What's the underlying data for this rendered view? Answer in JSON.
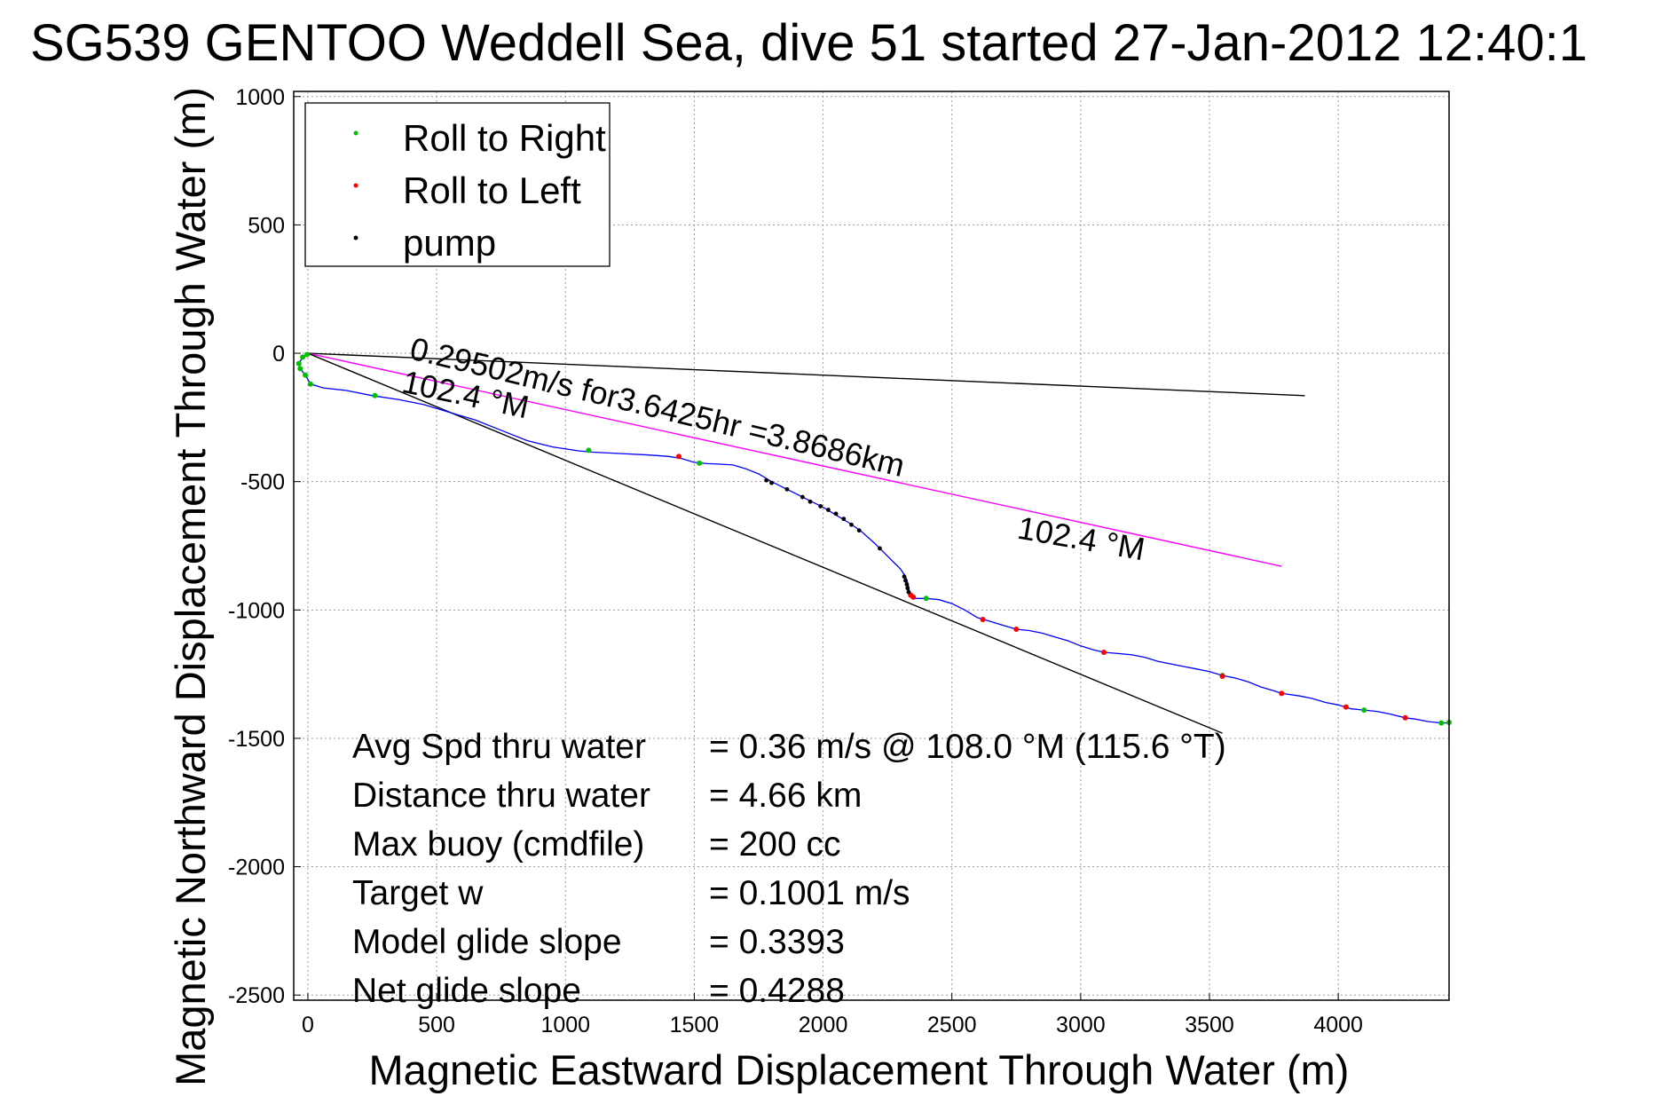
{
  "chart_data": {
    "type": "line",
    "title": "SG539 GENTOO Weddell Sea, dive 51 started 27-Jan-2012 12:40:1",
    "xlabel": "Magnetic Eastward Displacement Through Water (m)",
    "ylabel": "Magnetic Northward Displacement Through Water (m)",
    "xlim": [
      -55,
      4430
    ],
    "ylim": [
      -2520,
      1020
    ],
    "xticks": [
      0,
      500,
      1000,
      1500,
      2000,
      2500,
      3000,
      3500,
      4000
    ],
    "yticks": [
      1000,
      500,
      0,
      -500,
      -1000,
      -1500,
      -2000,
      -2500
    ],
    "grid": true,
    "legend_position": "top-left",
    "legend": [
      {
        "label": "Roll to Right",
        "color": "#00c000"
      },
      {
        "label": "Roll to Left",
        "color": "#ff0000"
      },
      {
        "label": "pump",
        "color": "#000000"
      }
    ],
    "track": {
      "color": "#0000ff",
      "points": [
        [
          -3,
          -5
        ],
        [
          -20,
          -15
        ],
        [
          -35,
          -40
        ],
        [
          -30,
          -60
        ],
        [
          -10,
          -85
        ],
        [
          10,
          -120
        ],
        [
          60,
          -135
        ],
        [
          150,
          -145
        ],
        [
          250,
          -165
        ],
        [
          350,
          -180
        ],
        [
          450,
          -200
        ],
        [
          550,
          -230
        ],
        [
          650,
          -260
        ],
        [
          750,
          -300
        ],
        [
          850,
          -340
        ],
        [
          950,
          -365
        ],
        [
          1050,
          -380
        ],
        [
          1100,
          -385
        ],
        [
          1200,
          -390
        ],
        [
          1300,
          -395
        ],
        [
          1350,
          -398
        ],
        [
          1400,
          -402
        ],
        [
          1450,
          -410
        ],
        [
          1500,
          -425
        ],
        [
          1550,
          -430
        ],
        [
          1600,
          -432
        ],
        [
          1650,
          -435
        ],
        [
          1700,
          -450
        ],
        [
          1750,
          -470
        ],
        [
          1800,
          -500
        ],
        [
          1850,
          -525
        ],
        [
          1900,
          -550
        ],
        [
          1950,
          -575
        ],
        [
          2000,
          -600
        ],
        [
          2050,
          -630
        ],
        [
          2100,
          -660
        ],
        [
          2150,
          -695
        ],
        [
          2200,
          -740
        ],
        [
          2250,
          -790
        ],
        [
          2300,
          -840
        ],
        [
          2320,
          -870
        ],
        [
          2330,
          -900
        ],
        [
          2335,
          -930
        ],
        [
          2345,
          -945
        ],
        [
          2360,
          -955
        ],
        [
          2400,
          -955
        ],
        [
          2450,
          -960
        ],
        [
          2500,
          -975
        ],
        [
          2550,
          -1000
        ],
        [
          2600,
          -1030
        ],
        [
          2650,
          -1045
        ],
        [
          2700,
          -1060
        ],
        [
          2750,
          -1075
        ],
        [
          2800,
          -1080
        ],
        [
          2850,
          -1090
        ],
        [
          2900,
          -1105
        ],
        [
          2950,
          -1120
        ],
        [
          3000,
          -1140
        ],
        [
          3050,
          -1155
        ],
        [
          3090,
          -1165
        ],
        [
          3150,
          -1170
        ],
        [
          3200,
          -1175
        ],
        [
          3250,
          -1185
        ],
        [
          3300,
          -1200
        ],
        [
          3350,
          -1210
        ],
        [
          3400,
          -1220
        ],
        [
          3450,
          -1230
        ],
        [
          3500,
          -1240
        ],
        [
          3550,
          -1255
        ],
        [
          3600,
          -1265
        ],
        [
          3650,
          -1280
        ],
        [
          3700,
          -1300
        ],
        [
          3750,
          -1315
        ],
        [
          3780,
          -1325
        ],
        [
          3850,
          -1335
        ],
        [
          3900,
          -1345
        ],
        [
          3950,
          -1360
        ],
        [
          4000,
          -1370
        ],
        [
          4050,
          -1385
        ],
        [
          4100,
          -1390
        ],
        [
          4150,
          -1395
        ],
        [
          4200,
          -1405
        ],
        [
          4260,
          -1420
        ],
        [
          4300,
          -1425
        ],
        [
          4350,
          -1435
        ],
        [
          4400,
          -1440
        ],
        [
          4430,
          -1440
        ]
      ]
    },
    "roll_right": [
      [
        -3,
        -5
      ],
      [
        -20,
        -15
      ],
      [
        -35,
        -40
      ],
      [
        -30,
        -60
      ],
      [
        -10,
        -85
      ],
      [
        10,
        -120
      ],
      [
        260,
        -165
      ],
      [
        1090,
        -378
      ],
      [
        1520,
        -428
      ],
      [
        2400,
        -955
      ],
      [
        3550,
        -1255
      ],
      [
        4100,
        -1390
      ],
      [
        4400,
        -1440
      ],
      [
        4430,
        -1438
      ]
    ],
    "roll_left": [
      [
        1440,
        -402
      ],
      [
        2340,
        -942
      ],
      [
        2350,
        -950
      ],
      [
        2620,
        -1037
      ],
      [
        2750,
        -1075
      ],
      [
        3090,
        -1165
      ],
      [
        3550,
        -1258
      ],
      [
        3780,
        -1325
      ],
      [
        4030,
        -1378
      ],
      [
        4260,
        -1420
      ]
    ],
    "pump": [
      [
        1780,
        -495
      ],
      [
        1800,
        -505
      ],
      [
        1860,
        -530
      ],
      [
        1920,
        -560
      ],
      [
        1950,
        -578
      ],
      [
        1990,
        -596
      ],
      [
        2020,
        -610
      ],
      [
        2050,
        -625
      ],
      [
        2080,
        -645
      ],
      [
        2110,
        -668
      ],
      [
        2140,
        -690
      ],
      [
        2220,
        -760
      ],
      [
        2315,
        -870
      ],
      [
        2320,
        -885
      ],
      [
        2325,
        -900
      ],
      [
        2328,
        -915
      ],
      [
        2332,
        -930
      ]
    ],
    "lines": [
      {
        "name": "gray_line",
        "color": "#000000",
        "points": [
          [
            0,
            0
          ],
          [
            3870,
            -165
          ]
        ]
      },
      {
        "name": "magenta_line",
        "color": "#ff00ff",
        "points": [
          [
            0,
            0
          ],
          [
            3780,
            -830
          ]
        ]
      },
      {
        "name": "black_line",
        "color": "#000000",
        "points": [
          [
            0,
            0
          ],
          [
            3550,
            -1480
          ]
        ]
      }
    ],
    "annotations": [
      {
        "text": "0.29502m/s for3.6425hr =3.8686km",
        "x": 390,
        "y": -20,
        "rotation": 13.5
      },
      {
        "text": "102.4 °M",
        "x": 360,
        "y": -150,
        "rotation": 12
      },
      {
        "text": "102.4 °M",
        "x": 2750,
        "y": -720,
        "rotation": 10
      }
    ],
    "stats": [
      {
        "label": "Avg Spd thru water",
        "value": "=  0.36 m/s @ 108.0 °M (115.6 °T)"
      },
      {
        "label": "Distance thru water",
        "value": "=  4.66 km"
      },
      {
        "label": "Max buoy (cmdfile)",
        "value": "= 200 cc"
      },
      {
        "label": "Target w",
        "value": "= 0.1001 m/s"
      },
      {
        "label": "Model glide slope",
        "value": "= 0.3393"
      },
      {
        "label": "Net glide slope",
        "value": "= 0.4288"
      }
    ]
  }
}
